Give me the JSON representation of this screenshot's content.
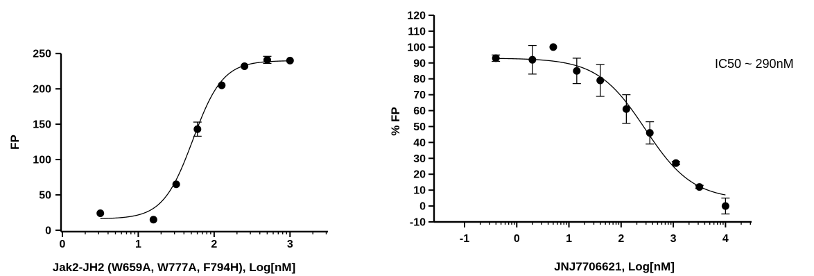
{
  "chart_data": [
    {
      "type": "scatter",
      "title": "",
      "xlabel": "Jak2-JH2 (W659A, W777A, F794H), Log[nM]",
      "ylabel": "FP",
      "xlim": [
        0,
        3.5
      ],
      "ylim": [
        0,
        260
      ],
      "x_ticks": [
        0,
        1,
        2,
        3
      ],
      "y_ticks": [
        0,
        50,
        100,
        150,
        200,
        250
      ],
      "x_minor_log_ticks": true,
      "grid": false,
      "legend": "none",
      "marker_color": "#000000",
      "fit": {
        "model": "sigmoid",
        "bottom": 16,
        "top": 240,
        "logEC50": 1.72,
        "hill": 2.2
      },
      "series": [
        {
          "x": [
            0.5,
            1.2,
            1.5,
            1.78,
            2.1,
            2.4,
            2.7,
            3.0
          ],
          "y": [
            24,
            15,
            65,
            143,
            205,
            232,
            241,
            240
          ],
          "err": [
            0,
            0,
            0,
            10,
            0,
            0,
            5,
            0
          ]
        }
      ]
    },
    {
      "type": "scatter",
      "title": "",
      "xlabel": "JNJ7706621, Log[nM]",
      "ylabel": "% FP",
      "xlim": [
        -1,
        4.5
      ],
      "ylim": [
        -10,
        120
      ],
      "x_ticks": [
        -1,
        0,
        1,
        2,
        3,
        4
      ],
      "y_ticks": [
        -10,
        0,
        10,
        20,
        30,
        40,
        50,
        60,
        70,
        80,
        90,
        100,
        110,
        120
      ],
      "x_minor_log_ticks": true,
      "grid": false,
      "legend": "none",
      "marker_color": "#000000",
      "annotation": "IC50 ~ 290nM",
      "fit": {
        "model": "sigmoid",
        "bottom": 4,
        "top": 93,
        "logEC50": 2.46,
        "hill": -0.95
      },
      "series": [
        {
          "x": [
            -0.4,
            0.3,
            0.7,
            1.15,
            1.6,
            2.1,
            2.55,
            3.05,
            3.5,
            4.0
          ],
          "y": [
            93,
            92,
            100,
            85,
            79,
            61,
            46,
            27,
            12,
            0
          ],
          "err": [
            2,
            9,
            0,
            8,
            10,
            9,
            7,
            1,
            1,
            5
          ]
        }
      ]
    }
  ]
}
